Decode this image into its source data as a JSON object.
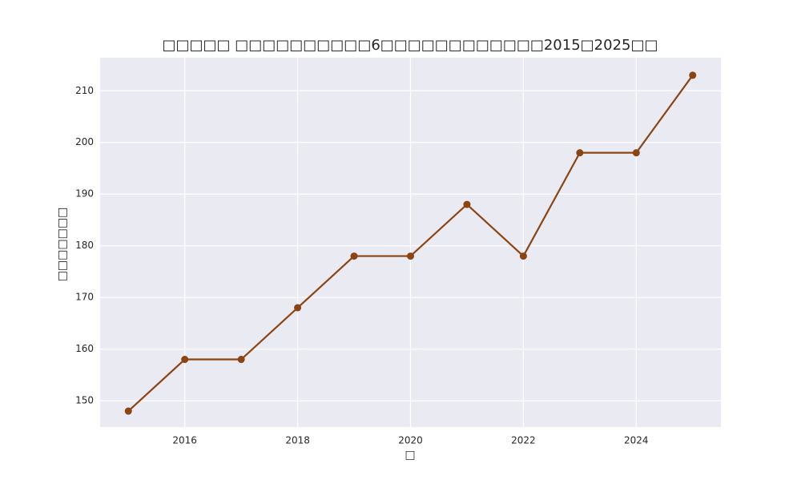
{
  "chart_data": {
    "type": "line",
    "title": "□□□□□ □□□□□□□□□□6□□□□□□□□□□□□2015□2025□□",
    "x_label": "□",
    "y_label": "□□□□□□□",
    "x": [
      2015,
      2016,
      2017,
      2018,
      2019,
      2020,
      2021,
      2022,
      2023,
      2024,
      2025
    ],
    "series": [
      {
        "name": "□□□□□□□",
        "color": "#8b4513",
        "values": [
          148,
          158,
          158,
          168,
          178,
          178,
          188,
          178,
          198,
          198,
          213
        ]
      }
    ],
    "xlim": [
      2014.5,
      2025.5
    ],
    "xticks": [
      2016,
      2018,
      2020,
      2022,
      2024
    ],
    "ylim": [
      144.9,
      216.4
    ],
    "yticks": [
      150,
      160,
      170,
      180,
      190,
      200,
      210
    ],
    "grid": true
  }
}
